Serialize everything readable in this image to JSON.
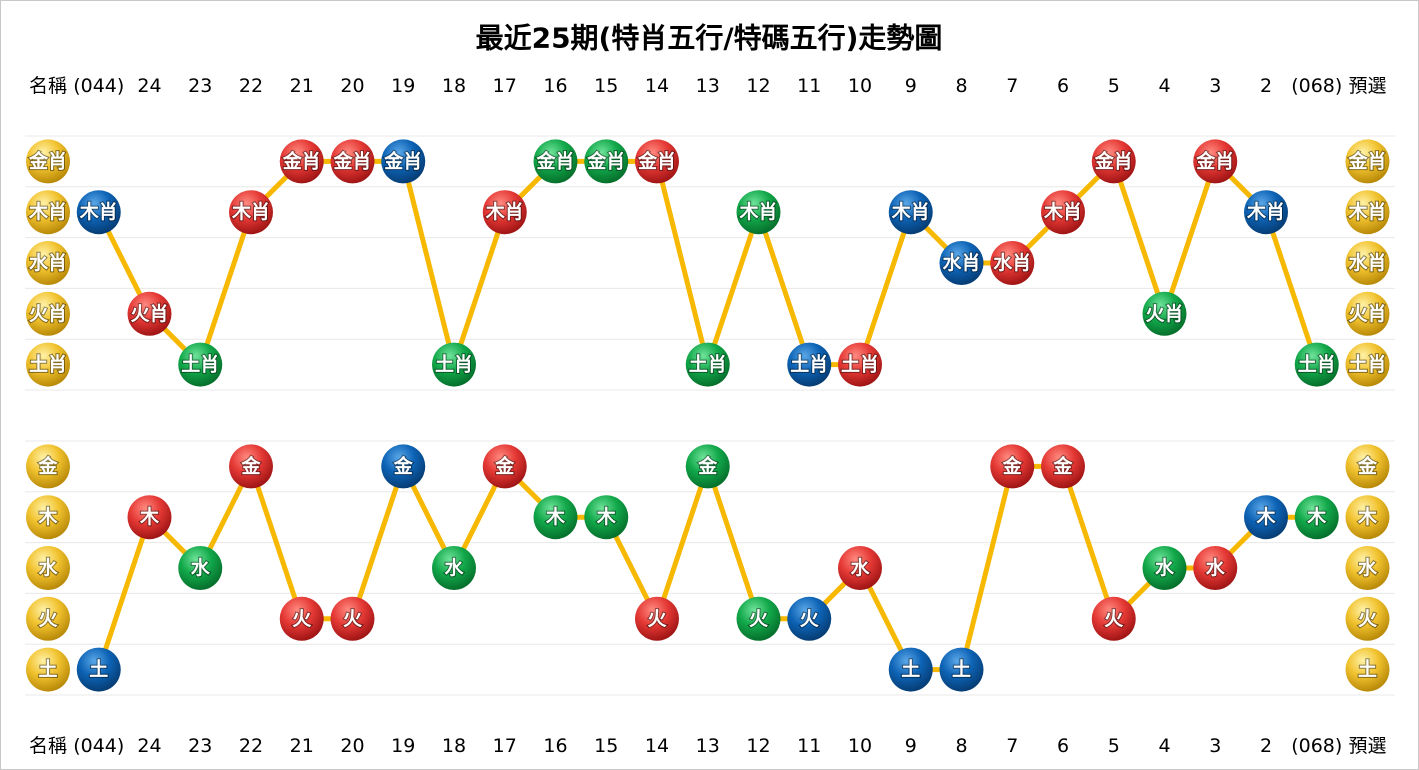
{
  "title": "最近25期(特肖五行/特碼五行)走勢圖",
  "columns": [
    "名稱",
    "(044)",
    "24",
    "23",
    "22",
    "21",
    "20",
    "19",
    "18",
    "17",
    "16",
    "15",
    "14",
    "13",
    "12",
    "11",
    "10",
    "9",
    "8",
    "7",
    "6",
    "5",
    "4",
    "3",
    "2",
    "(068)",
    "預選"
  ],
  "panels": [
    {
      "rows": [
        "金肖",
        "木肖",
        "水肖",
        "火肖",
        "土肖"
      ],
      "points": [
        {
          "label": "木肖",
          "color": "blue"
        },
        {
          "label": "火肖",
          "color": "red"
        },
        {
          "label": "土肖",
          "color": "green"
        },
        {
          "label": "木肖",
          "color": "red"
        },
        {
          "label": "金肖",
          "color": "red"
        },
        {
          "label": "金肖",
          "color": "red"
        },
        {
          "label": "金肖",
          "color": "blue"
        },
        {
          "label": "土肖",
          "color": "green"
        },
        {
          "label": "木肖",
          "color": "red"
        },
        {
          "label": "金肖",
          "color": "green"
        },
        {
          "label": "金肖",
          "color": "green"
        },
        {
          "label": "金肖",
          "color": "red"
        },
        {
          "label": "土肖",
          "color": "green"
        },
        {
          "label": "木肖",
          "color": "green"
        },
        {
          "label": "土肖",
          "color": "blue"
        },
        {
          "label": "土肖",
          "color": "red"
        },
        {
          "label": "木肖",
          "color": "blue"
        },
        {
          "label": "水肖",
          "color": "blue"
        },
        {
          "label": "水肖",
          "color": "red"
        },
        {
          "label": "木肖",
          "color": "red"
        },
        {
          "label": "金肖",
          "color": "red"
        },
        {
          "label": "火肖",
          "color": "green"
        },
        {
          "label": "金肖",
          "color": "red"
        },
        {
          "label": "木肖",
          "color": "blue"
        },
        {
          "label": "土肖",
          "color": "green"
        }
      ]
    },
    {
      "rows": [
        "金",
        "木",
        "水",
        "火",
        "土"
      ],
      "points": [
        {
          "label": "土",
          "color": "blue"
        },
        {
          "label": "木",
          "color": "red"
        },
        {
          "label": "水",
          "color": "green"
        },
        {
          "label": "金",
          "color": "red"
        },
        {
          "label": "火",
          "color": "red"
        },
        {
          "label": "火",
          "color": "red"
        },
        {
          "label": "金",
          "color": "blue"
        },
        {
          "label": "水",
          "color": "green"
        },
        {
          "label": "金",
          "color": "red"
        },
        {
          "label": "木",
          "color": "green"
        },
        {
          "label": "木",
          "color": "green"
        },
        {
          "label": "火",
          "color": "red"
        },
        {
          "label": "金",
          "color": "green"
        },
        {
          "label": "火",
          "color": "green"
        },
        {
          "label": "火",
          "color": "blue"
        },
        {
          "label": "水",
          "color": "red"
        },
        {
          "label": "土",
          "color": "blue"
        },
        {
          "label": "土",
          "color": "blue"
        },
        {
          "label": "金",
          "color": "red"
        },
        {
          "label": "金",
          "color": "red"
        },
        {
          "label": "火",
          "color": "red"
        },
        {
          "label": "水",
          "color": "green"
        },
        {
          "label": "水",
          "color": "red"
        },
        {
          "label": "木",
          "color": "blue"
        },
        {
          "label": "木",
          "color": "green"
        }
      ]
    }
  ]
}
